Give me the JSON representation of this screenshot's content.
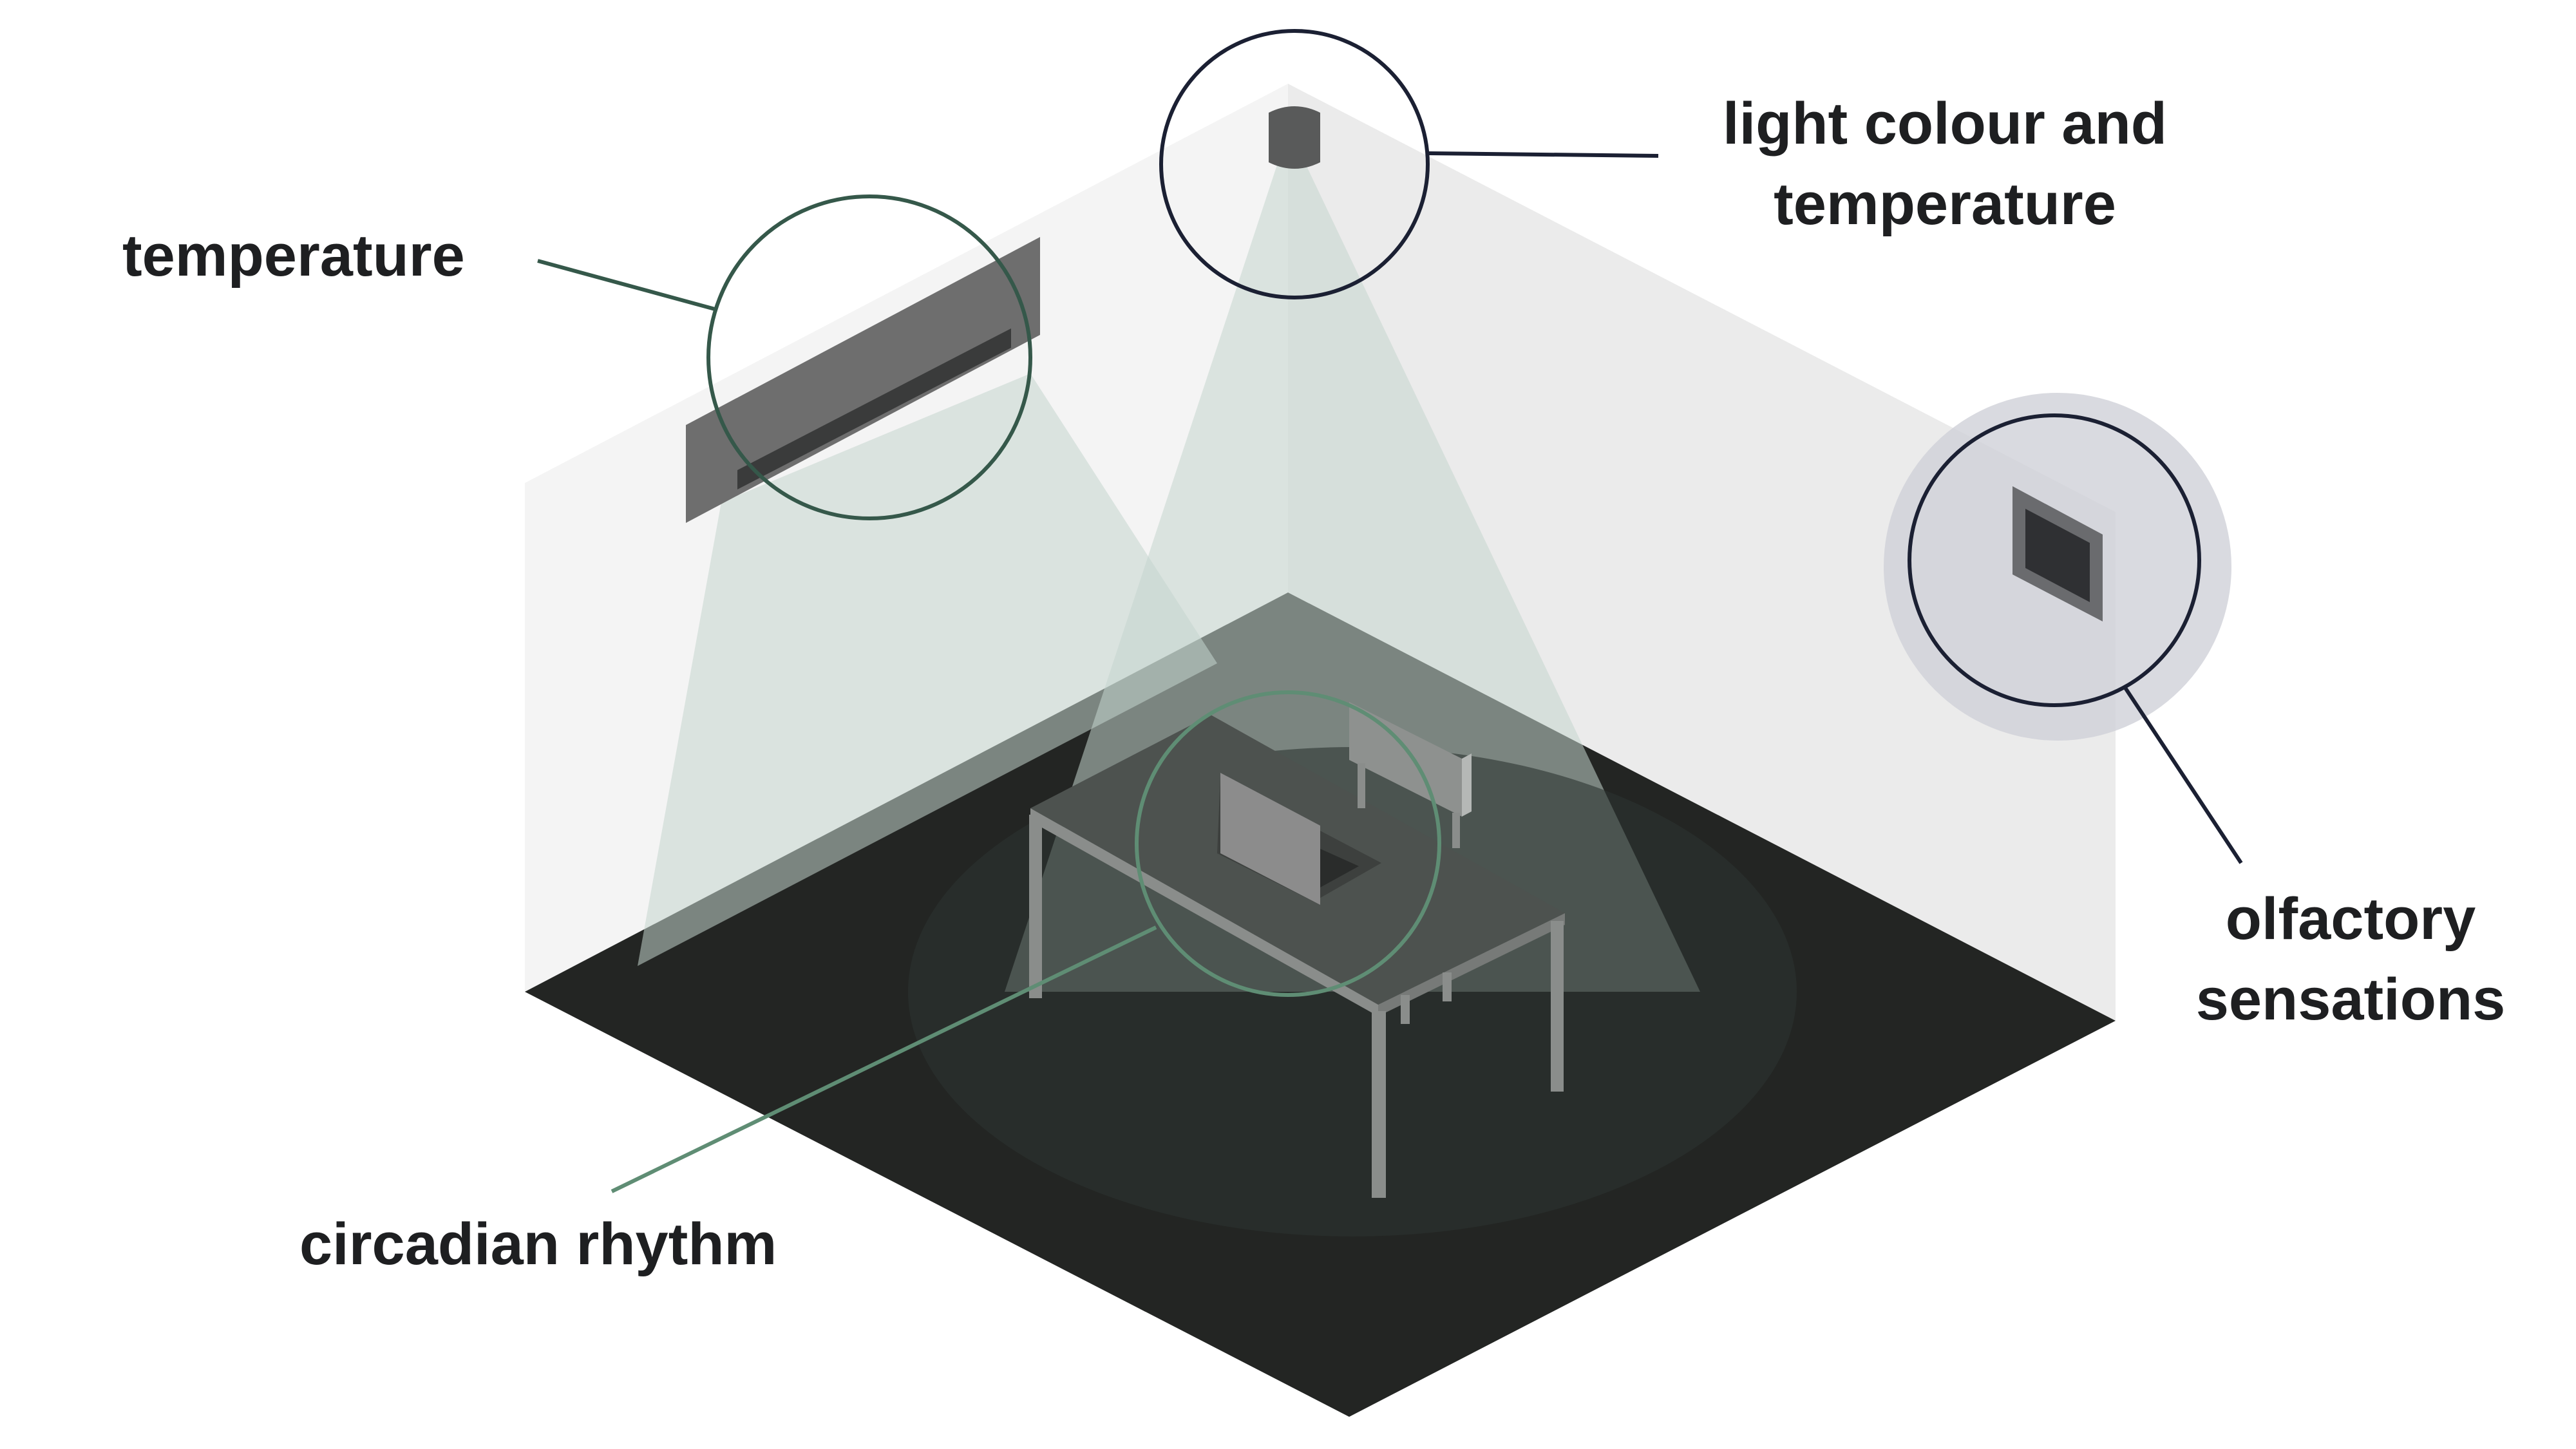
{
  "labels": {
    "temperature": "temperature",
    "light": [
      "light colour and",
      "temperature"
    ],
    "olfactory": [
      "olfactory",
      "sensations"
    ],
    "circadian": "circadian rhythm"
  },
  "colors": {
    "background": "#ffffff",
    "wall_left": "#f4f4f4",
    "wall_right": "#ebebeb",
    "floor": "#232523",
    "text": "#1e1f21",
    "navy_outline": "#1b2033",
    "green_outline": "#35584a",
    "light_green_outline": "#5f8d74",
    "light_beam": "#c5d6cd",
    "fixture": "#6e6e6e",
    "table_top": "#4d524f",
    "table_frame": "#8a8d8b"
  },
  "icons": [
    "air-conditioner-icon",
    "ceiling-light-icon",
    "scent-diffuser-icon",
    "laptop-icon",
    "table-icon",
    "chair-icon"
  ]
}
